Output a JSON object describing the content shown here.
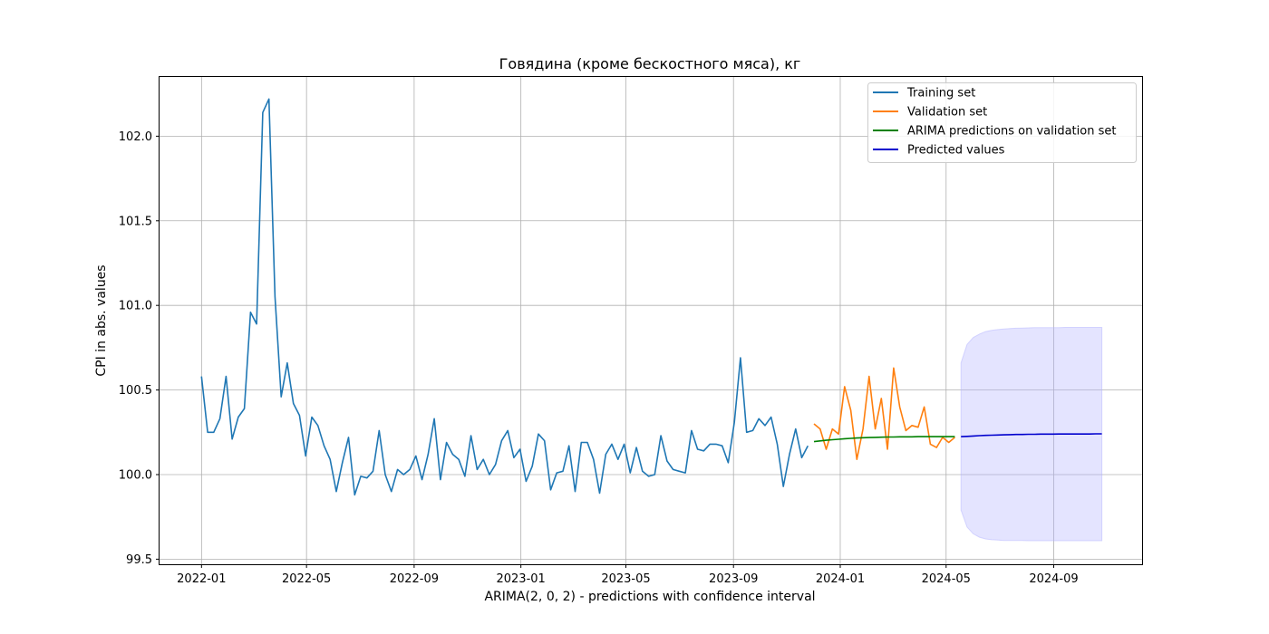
{
  "chart_data": {
    "type": "line",
    "title": "Говядина (кроме бескостного мяса), кг",
    "xlabel": "ARIMA(2, 0, 2) - predictions with confidence interval",
    "ylabel": "CPI in abs. values",
    "xlim": [
      "2021-11-14",
      "2024-12-11"
    ],
    "ylim": [
      99.47,
      102.35
    ],
    "xticks": [
      "2022-01",
      "2022-05",
      "2022-09",
      "2023-01",
      "2023-05",
      "2023-09",
      "2024-01",
      "2024-05",
      "2024-09"
    ],
    "yticks": [
      "99.5",
      "100.0",
      "100.5",
      "101.0",
      "101.5",
      "102.0"
    ],
    "grid": true,
    "legend_position": "top-right",
    "series": [
      {
        "name": "Training set",
        "color": "#1f77b4",
        "start": "2022-01-01",
        "step_days": 7,
        "values": [
          100.58,
          100.25,
          100.25,
          100.33,
          100.58,
          100.21,
          100.34,
          100.39,
          100.96,
          100.89,
          102.14,
          102.22,
          101.05,
          100.46,
          100.66,
          100.42,
          100.35,
          100.11,
          100.34,
          100.29,
          100.17,
          100.09,
          99.9,
          100.07,
          100.22,
          99.88,
          99.99,
          99.98,
          100.02,
          100.26,
          100.0,
          99.9,
          100.03,
          100.0,
          100.03,
          100.11,
          99.97,
          100.12,
          100.33,
          99.97,
          100.19,
          100.12,
          100.09,
          99.99,
          100.23,
          100.03,
          100.09,
          100.0,
          100.06,
          100.2,
          100.26,
          100.1,
          100.15,
          99.96,
          100.05,
          100.24,
          100.2,
          99.91,
          100.01,
          100.02,
          100.17,
          99.9,
          100.19,
          100.19,
          100.09,
          99.89,
          100.12,
          100.18,
          100.09,
          100.18,
          100.01,
          100.16,
          100.02,
          99.99,
          100.0,
          100.23,
          100.08,
          100.03,
          100.02,
          100.01,
          100.26,
          100.15,
          100.14,
          100.18,
          100.18,
          100.17,
          100.07,
          100.31,
          100.69,
          100.25,
          100.26,
          100.33,
          100.29,
          100.34,
          100.18,
          99.93,
          100.12,
          100.27,
          100.1,
          100.17
        ]
      },
      {
        "name": "Validation set",
        "color": "#ff7f0e",
        "start": "2023-12-02",
        "step_days": 7,
        "values": [
          100.3,
          100.27,
          100.15,
          100.27,
          100.24,
          100.52,
          100.38,
          100.09,
          100.27,
          100.58,
          100.27,
          100.45,
          100.15,
          100.63,
          100.4,
          100.26,
          100.29,
          100.28,
          100.4,
          100.18,
          100.16,
          100.22,
          100.19,
          100.22
        ]
      },
      {
        "name": "ARIMA predictions on validation set",
        "color": "#008000",
        "start": "2023-12-02",
        "step_days": 7,
        "values": [
          100.195,
          100.199,
          100.203,
          100.206,
          100.209,
          100.212,
          100.214,
          100.216,
          100.218,
          100.219,
          100.22,
          100.221,
          100.222,
          100.222,
          100.223,
          100.223,
          100.223,
          100.224,
          100.224,
          100.224,
          100.224,
          100.224,
          100.224,
          100.224
        ]
      },
      {
        "name": "Predicted values",
        "color": "#0000cd",
        "start": "2024-05-18",
        "step_days": 7,
        "values": [
          100.224,
          100.226,
          100.228,
          100.23,
          100.232,
          100.233,
          100.234,
          100.235,
          100.236,
          100.237,
          100.237,
          100.238,
          100.238,
          100.239,
          100.239,
          100.239,
          100.24,
          100.24,
          100.24,
          100.24,
          100.24,
          100.24,
          100.241,
          100.241
        ],
        "ci_lower": [
          100.66,
          100.77,
          100.81,
          100.83,
          100.845,
          100.852,
          100.857,
          100.861,
          100.863,
          100.865,
          100.866,
          100.867,
          100.868,
          100.868,
          100.869,
          100.869,
          100.869,
          100.87,
          100.87,
          100.87,
          100.87,
          100.87,
          100.87,
          100.87
        ],
        "ci_upper_note": "",
        "ci_low": [
          99.79,
          99.69,
          99.65,
          99.63,
          99.62,
          99.615,
          99.613,
          99.611,
          99.61,
          99.61,
          99.61,
          99.609,
          99.609,
          99.609,
          99.609,
          99.609,
          99.609,
          99.609,
          99.609,
          99.609,
          99.609,
          99.609,
          99.609,
          99.609
        ],
        "ci_color": "#b3b3ff"
      }
    ]
  }
}
